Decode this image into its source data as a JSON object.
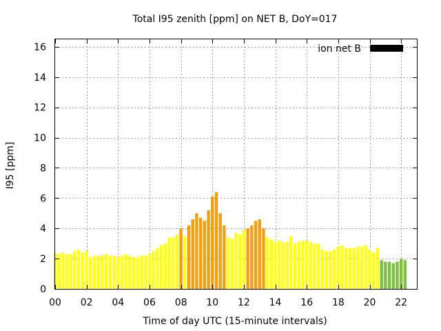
{
  "chart_data": {
    "type": "bar",
    "title": "Total I95 zenith [ppm] on NET B, DoY=017",
    "xlabel": "Time of day UTC (15-minute intervals)",
    "ylabel": "I95 [ppm]",
    "ylim": [
      0,
      16.5
    ],
    "xlim": [
      0,
      23
    ],
    "yticks": [
      "0",
      "2",
      "4",
      "6",
      "8",
      "10",
      "12",
      "14",
      "16"
    ],
    "xticks": [
      "00",
      "02",
      "04",
      "06",
      "08",
      "10",
      "12",
      "14",
      "16",
      "18",
      "20",
      "22"
    ],
    "grid": true,
    "legend": {
      "label": "ion net B",
      "color": "#000000",
      "position": "top-right"
    },
    "colors": {
      "low": "#ffff1a",
      "mid": "#f0a010",
      "low_green": "#80c040"
    },
    "interval_hours": 0.25,
    "values": [
      2.4,
      2.3,
      2.4,
      2.3,
      2.3,
      2.5,
      2.6,
      2.4,
      2.5,
      2.1,
      2.2,
      2.2,
      2.2,
      2.3,
      2.2,
      2.2,
      2.1,
      2.2,
      2.3,
      2.2,
      2.1,
      2.1,
      2.2,
      2.2,
      2.3,
      2.5,
      2.7,
      2.9,
      3.0,
      3.4,
      3.4,
      3.6,
      4.0,
      3.5,
      4.2,
      4.6,
      5.0,
      4.7,
      4.5,
      5.2,
      6.1,
      6.4,
      5.0,
      4.2,
      3.4,
      3.3,
      3.7,
      3.6,
      3.9,
      4.0,
      4.2,
      4.5,
      4.6,
      4.0,
      3.4,
      3.3,
      3.1,
      3.2,
      3.1,
      3.1,
      3.5,
      3.0,
      3.1,
      3.2,
      3.2,
      3.1,
      3.0,
      3.0,
      2.6,
      2.5,
      2.5,
      2.6,
      2.8,
      2.9,
      2.7,
      2.7,
      2.7,
      2.8,
      2.8,
      2.9,
      2.6,
      2.4,
      2.7,
      1.9,
      1.8,
      1.8,
      1.7,
      1.8,
      2.0,
      1.9
    ],
    "bar_colors": [
      "#ffff1a",
      "#ffff1a",
      "#ffff1a",
      "#ffff1a",
      "#ffff1a",
      "#ffff1a",
      "#ffff1a",
      "#ffff1a",
      "#ffff1a",
      "#ffff1a",
      "#ffff1a",
      "#ffff1a",
      "#ffff1a",
      "#ffff1a",
      "#ffff1a",
      "#ffff1a",
      "#ffff1a",
      "#ffff1a",
      "#ffff1a",
      "#ffff1a",
      "#ffff1a",
      "#ffff1a",
      "#ffff1a",
      "#ffff1a",
      "#ffff1a",
      "#ffff1a",
      "#ffff1a",
      "#ffff1a",
      "#ffff1a",
      "#ffff1a",
      "#ffff1a",
      "#ffff1a",
      "#f0a010",
      "#ffff1a",
      "#f0a010",
      "#f0a010",
      "#f0a010",
      "#f0a010",
      "#f0a010",
      "#f0a010",
      "#f0a010",
      "#f0a010",
      "#f0a010",
      "#f0a010",
      "#ffff1a",
      "#ffff1a",
      "#ffff1a",
      "#ffff1a",
      "#ffff1a",
      "#f0a010",
      "#f0a010",
      "#f0a010",
      "#f0a010",
      "#f0a010",
      "#ffff1a",
      "#ffff1a",
      "#ffff1a",
      "#ffff1a",
      "#ffff1a",
      "#ffff1a",
      "#ffff1a",
      "#ffff1a",
      "#ffff1a",
      "#ffff1a",
      "#ffff1a",
      "#ffff1a",
      "#ffff1a",
      "#ffff1a",
      "#ffff1a",
      "#ffff1a",
      "#ffff1a",
      "#ffff1a",
      "#ffff1a",
      "#ffff1a",
      "#ffff1a",
      "#ffff1a",
      "#ffff1a",
      "#ffff1a",
      "#ffff1a",
      "#ffff1a",
      "#ffff1a",
      "#ffff1a",
      "#ffff1a",
      "#80c040",
      "#80c040",
      "#80c040",
      "#80c040",
      "#80c040",
      "#80c040",
      "#80c040"
    ]
  }
}
